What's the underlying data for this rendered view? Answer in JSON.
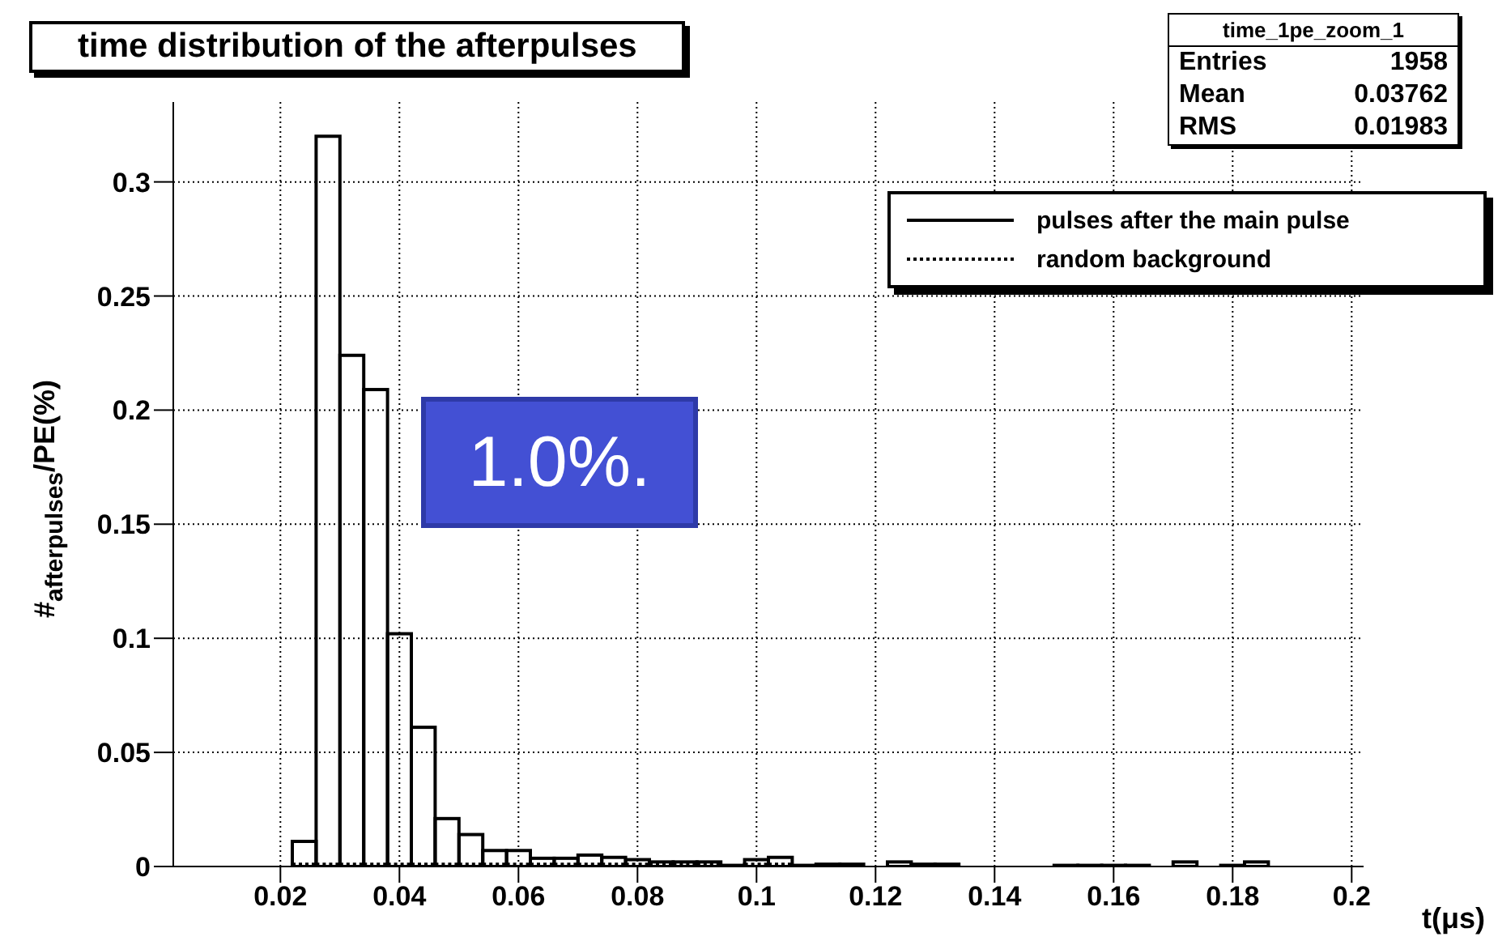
{
  "chart_data": {
    "type": "histogram",
    "title": "time distribution of the afterpulses",
    "xlabel": "t(μs)",
    "ylabel": "#$_{afterpulses}$/PE(%)",
    "bins": [
      0.002,
      0.006,
      0.01,
      0.014,
      0.018,
      0.022,
      0.026,
      0.03,
      0.034,
      0.038,
      0.042,
      0.046,
      0.05,
      0.054,
      0.058,
      0.062,
      0.066,
      0.07,
      0.074,
      0.078,
      0.082,
      0.086,
      0.09,
      0.094,
      0.098,
      0.102,
      0.106,
      0.11,
      0.114,
      0.118,
      0.122,
      0.126,
      0.13,
      0.134,
      0.138,
      0.142,
      0.146,
      0.15,
      0.154,
      0.158,
      0.162,
      0.166,
      0.17,
      0.174,
      0.178,
      0.182,
      0.186,
      0.19,
      0.194,
      0.198,
      0.202
    ],
    "series": [
      {
        "name": "pulses after the main pulse",
        "color": "#000000",
        "line_style": "solid",
        "values": [
          0,
          0,
          0,
          0,
          0,
          0.011,
          0.32,
          0.224,
          0.209,
          0.102,
          0.061,
          0.021,
          0.014,
          0.007,
          0.007,
          0.0036,
          0.0036,
          0.005,
          0.004,
          0.003,
          0.002,
          0.002,
          0.002,
          0.0005,
          0.003,
          0.004,
          0.0005,
          0.001,
          0.001,
          0,
          0.002,
          0.001,
          0.001,
          0,
          0,
          0,
          0,
          0.0005,
          0.0005,
          0.0005,
          0.0005,
          0,
          0.002,
          0,
          0.0005,
          0.002,
          0,
          0,
          0,
          0
        ]
      },
      {
        "name": "random background",
        "color": "#000000",
        "line_style": "dotted",
        "values": [
          0,
          0,
          0,
          0,
          0,
          0.001,
          0.001,
          0.001,
          0.001,
          0.001,
          0.001,
          0.001,
          0.001,
          0.001,
          0.001,
          0.001,
          0.001,
          0.001,
          0.001,
          0.001,
          0.001,
          0.001,
          0.001,
          null,
          0.001,
          0.001,
          null,
          0,
          0,
          0,
          0,
          0,
          0,
          0,
          0,
          0,
          0,
          0,
          0,
          0,
          0,
          0,
          0,
          0,
          0,
          0,
          0,
          0,
          0,
          0
        ]
      }
    ],
    "xlim": [
      0.002,
      0.202
    ],
    "xticks": [
      0.02,
      0.04,
      0.06,
      0.08,
      0.1,
      0.12,
      0.14,
      0.16,
      0.18,
      0.2
    ],
    "ylim": [
      0,
      0.335
    ],
    "yticks": [
      0,
      0.05,
      0.1,
      0.15,
      0.2,
      0.25,
      0.3
    ],
    "grid": true,
    "legend": "top right",
    "annotations": [
      "1.0%.",
      "time_1pe_zoom_1",
      "Entries 1958",
      "Mean 0.03762",
      "RMS 0.01983"
    ]
  }
}
